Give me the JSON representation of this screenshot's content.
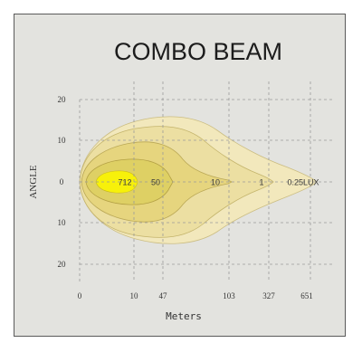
{
  "chart_data": {
    "type": "isolux",
    "title": "COMBO  BEAM",
    "xlabel": "Meters",
    "ylabel": "ANGLE",
    "x_ticks": [
      "0",
      "10",
      "47",
      "103",
      "327",
      "651"
    ],
    "y_ticks": [
      "20",
      "10",
      "0",
      "10",
      "20"
    ],
    "grid": true,
    "zones": [
      {
        "lux": "0.25LUX",
        "color": "#f2e8bc"
      },
      {
        "lux": "1",
        "color": "#ecdfa2"
      },
      {
        "lux": "10",
        "color": "#e6d57e"
      },
      {
        "lux": "50",
        "color": "#ded064"
      },
      {
        "lux": "712",
        "color": "#f7f10a"
      }
    ]
  }
}
